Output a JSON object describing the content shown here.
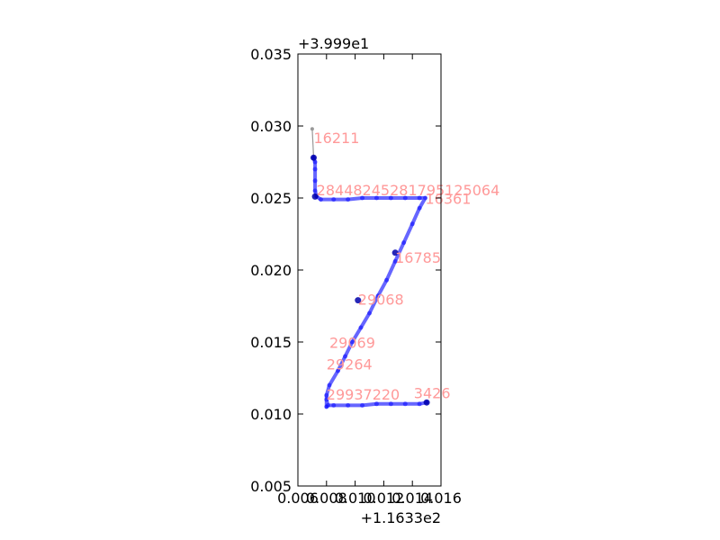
{
  "chart_data": {
    "type": "line",
    "title": "",
    "xlabel": "",
    "ylabel": "",
    "x_offset_text": "+1.1633e2",
    "y_offset_text": "+3.999e1",
    "xlim": [
      0.006,
      0.016
    ],
    "ylim": [
      0.005,
      0.035
    ],
    "x_ticks": [
      0.006,
      0.008,
      0.01,
      0.012,
      0.014,
      0.016
    ],
    "x_tick_labels": [
      "0.006",
      "0.008",
      "0.010",
      "0.012",
      "0.014",
      "0.016"
    ],
    "y_ticks": [
      0.005,
      0.01,
      0.015,
      0.02,
      0.025,
      0.03,
      0.035
    ],
    "y_tick_labels": [
      "0.005",
      "0.010",
      "0.015",
      "0.020",
      "0.025",
      "0.030",
      "0.035"
    ],
    "grid": false,
    "colors": {
      "track": "#0000ff",
      "start": "#999999",
      "label": "#ff9999",
      "axis": "#000000"
    },
    "start_segment": {
      "x": [
        0.007,
        0.0071
      ],
      "y": [
        0.0298,
        0.0278
      ]
    },
    "track": {
      "x": [
        0.0071,
        0.0072,
        0.0072,
        0.0072,
        0.0072,
        0.0073,
        0.0076,
        0.0085,
        0.0095,
        0.0105,
        0.0115,
        0.0125,
        0.0135,
        0.0145,
        0.0149,
        0.0145,
        0.014,
        0.0134,
        0.0128,
        0.0122,
        0.0116,
        0.011,
        0.0104,
        0.0098,
        0.0093,
        0.0088,
        0.0082,
        0.008,
        0.008,
        0.008,
        0.0081,
        0.0085,
        0.0095,
        0.0105,
        0.0115,
        0.0125,
        0.0135,
        0.0145,
        0.015
      ],
      "y": [
        0.0278,
        0.0275,
        0.027,
        0.0262,
        0.0255,
        0.0251,
        0.0249,
        0.0249,
        0.0249,
        0.025,
        0.025,
        0.025,
        0.025,
        0.025,
        0.025,
        0.0243,
        0.0232,
        0.0219,
        0.0206,
        0.0193,
        0.0182,
        0.017,
        0.016,
        0.015,
        0.014,
        0.013,
        0.012,
        0.0113,
        0.0105,
        0.011,
        0.0106,
        0.0106,
        0.0106,
        0.0106,
        0.0107,
        0.0107,
        0.0107,
        0.0107,
        0.0108
      ]
    },
    "dense_points": [
      {
        "x": 0.0071,
        "y": 0.0278
      },
      {
        "x": 0.0072,
        "y": 0.0251
      },
      {
        "x": 0.0128,
        "y": 0.0212
      },
      {
        "x": 0.0102,
        "y": 0.0179
      },
      {
        "x": 0.015,
        "y": 0.0108
      }
    ],
    "annotations": [
      {
        "text": "16211",
        "x": 0.0071,
        "y": 0.0288
      },
      {
        "text": "28448245281795125064",
        "x": 0.0073,
        "y": 0.0252
      },
      {
        "text": "16361",
        "x": 0.0149,
        "y": 0.0246
      },
      {
        "text": "16785",
        "x": 0.0128,
        "y": 0.0205
      },
      {
        "text": "29068",
        "x": 0.0102,
        "y": 0.0176
      },
      {
        "text": "29069",
        "x": 0.0082,
        "y": 0.0146
      },
      {
        "text": "29264",
        "x": 0.008,
        "y": 0.0131
      },
      {
        "text": "29937220",
        "x": 0.008,
        "y": 0.011
      },
      {
        "text": "3426",
        "x": 0.0141,
        "y": 0.0111
      }
    ]
  }
}
